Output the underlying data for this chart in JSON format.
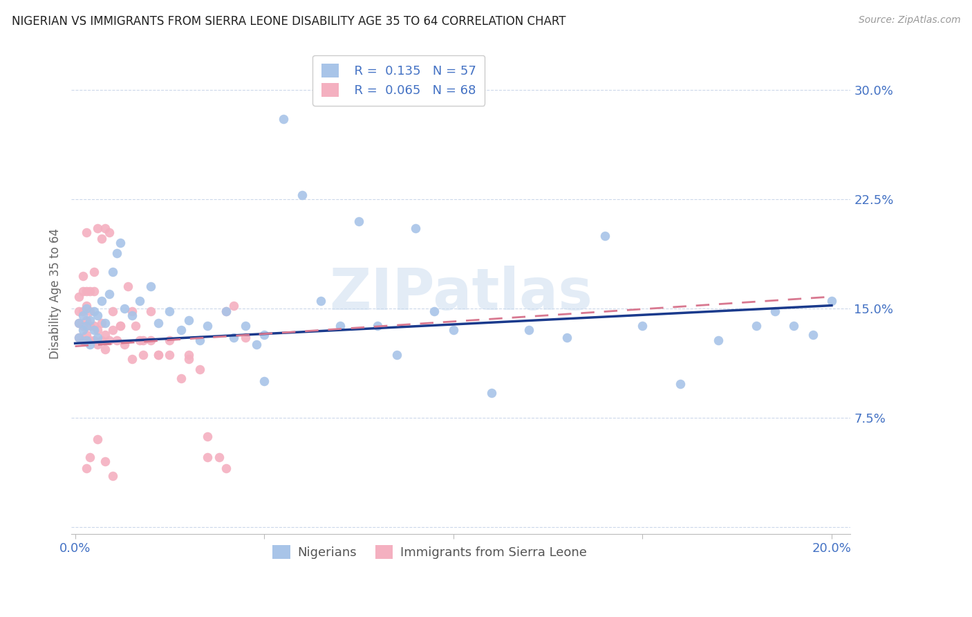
{
  "title": "NIGERIAN VS IMMIGRANTS FROM SIERRA LEONE DISABILITY AGE 35 TO 64 CORRELATION CHART",
  "source": "Source: ZipAtlas.com",
  "ylabel": "Disability Age 35 to 64",
  "xlim": [
    -0.001,
    0.205
  ],
  "ylim": [
    -0.005,
    0.325
  ],
  "xticks": [
    0.0,
    0.05,
    0.1,
    0.15,
    0.2
  ],
  "xtick_labels": [
    "0.0%",
    "",
    "",
    "",
    "20.0%"
  ],
  "yticks": [
    0.0,
    0.075,
    0.15,
    0.225,
    0.3
  ],
  "ytick_labels": [
    "",
    "7.5%",
    "15.0%",
    "22.5%",
    "30.0%"
  ],
  "blue_color": "#a8c4e8",
  "pink_color": "#f4b0c0",
  "blue_line_color": "#1a3a8c",
  "pink_line_color": "#d87890",
  "legend_R1_val": "0.135",
  "legend_N1_val": "57",
  "legend_R2_val": "0.065",
  "legend_N2_val": "68",
  "watermark": "ZIPatlas",
  "nigerians_x": [
    0.001,
    0.001,
    0.002,
    0.002,
    0.003,
    0.003,
    0.003,
    0.004,
    0.004,
    0.005,
    0.005,
    0.006,
    0.006,
    0.007,
    0.008,
    0.009,
    0.01,
    0.011,
    0.012,
    0.013,
    0.015,
    0.017,
    0.02,
    0.022,
    0.025,
    0.028,
    0.03,
    0.033,
    0.035,
    0.04,
    0.042,
    0.045,
    0.048,
    0.05,
    0.055,
    0.06,
    0.065,
    0.07,
    0.08,
    0.09,
    0.095,
    0.1,
    0.11,
    0.12,
    0.13,
    0.14,
    0.15,
    0.16,
    0.17,
    0.18,
    0.185,
    0.19,
    0.195,
    0.2,
    0.05,
    0.075,
    0.085
  ],
  "nigerians_y": [
    0.13,
    0.14,
    0.135,
    0.145,
    0.128,
    0.138,
    0.15,
    0.125,
    0.142,
    0.135,
    0.148,
    0.13,
    0.145,
    0.155,
    0.14,
    0.16,
    0.175,
    0.188,
    0.195,
    0.15,
    0.145,
    0.155,
    0.165,
    0.14,
    0.148,
    0.135,
    0.142,
    0.128,
    0.138,
    0.148,
    0.13,
    0.138,
    0.125,
    0.132,
    0.28,
    0.228,
    0.155,
    0.138,
    0.138,
    0.205,
    0.148,
    0.135,
    0.092,
    0.135,
    0.13,
    0.2,
    0.138,
    0.098,
    0.128,
    0.138,
    0.148,
    0.138,
    0.132,
    0.155,
    0.1,
    0.21,
    0.118
  ],
  "sierraleone_x": [
    0.001,
    0.001,
    0.001,
    0.001,
    0.002,
    0.002,
    0.002,
    0.002,
    0.002,
    0.003,
    0.003,
    0.003,
    0.003,
    0.003,
    0.004,
    0.004,
    0.004,
    0.004,
    0.005,
    0.005,
    0.005,
    0.005,
    0.006,
    0.006,
    0.006,
    0.007,
    0.007,
    0.007,
    0.008,
    0.008,
    0.008,
    0.009,
    0.009,
    0.01,
    0.01,
    0.011,
    0.012,
    0.013,
    0.014,
    0.015,
    0.016,
    0.017,
    0.018,
    0.02,
    0.022,
    0.025,
    0.028,
    0.03,
    0.033,
    0.035,
    0.038,
    0.04,
    0.042,
    0.045,
    0.015,
    0.012,
    0.02,
    0.025,
    0.022,
    0.018,
    0.03,
    0.035,
    0.04,
    0.008,
    0.01,
    0.006,
    0.004,
    0.003
  ],
  "sierraleone_y": [
    0.14,
    0.148,
    0.13,
    0.158,
    0.138,
    0.148,
    0.128,
    0.162,
    0.172,
    0.132,
    0.142,
    0.152,
    0.162,
    0.202,
    0.128,
    0.138,
    0.148,
    0.162,
    0.128,
    0.138,
    0.162,
    0.175,
    0.125,
    0.135,
    0.205,
    0.128,
    0.14,
    0.198,
    0.122,
    0.132,
    0.205,
    0.128,
    0.202,
    0.135,
    0.148,
    0.128,
    0.138,
    0.125,
    0.165,
    0.115,
    0.138,
    0.128,
    0.118,
    0.128,
    0.118,
    0.118,
    0.102,
    0.118,
    0.108,
    0.062,
    0.048,
    0.148,
    0.152,
    0.13,
    0.148,
    0.138,
    0.148,
    0.128,
    0.118,
    0.128,
    0.115,
    0.048,
    0.04,
    0.045,
    0.035,
    0.06,
    0.048,
    0.04
  ],
  "nig_trend_x": [
    0.0,
    0.2
  ],
  "nig_trend_y": [
    0.126,
    0.152
  ],
  "sl_trend_x": [
    0.0,
    0.2
  ],
  "sl_trend_y": [
    0.124,
    0.158
  ]
}
